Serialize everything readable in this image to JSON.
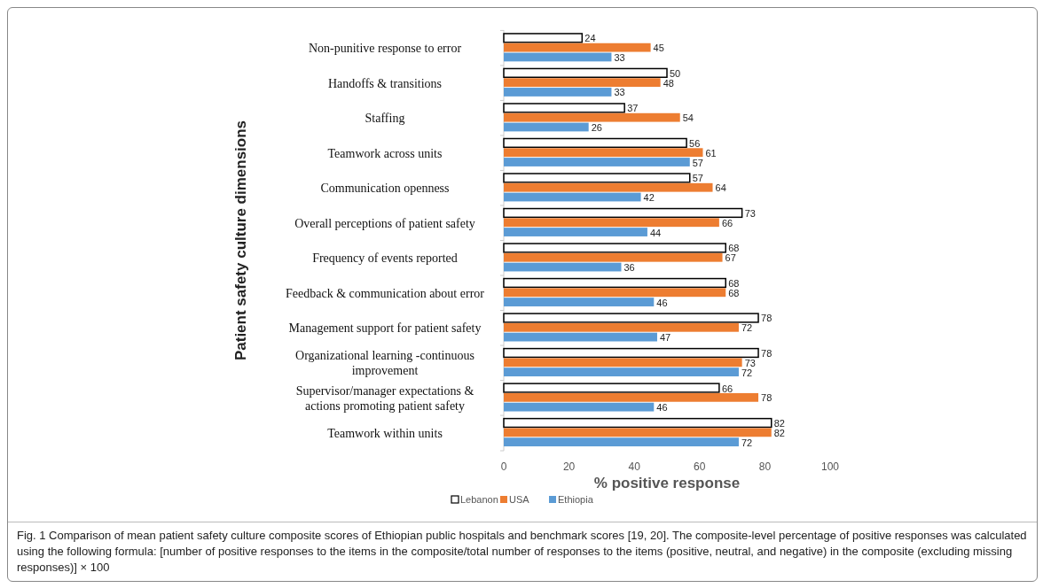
{
  "chart_data": {
    "type": "bar",
    "orientation": "horizontal",
    "ylabel": "Patient safety culture dimensions",
    "xlabel": "% positive response",
    "categories": [
      "Non-punitive response to error",
      "Handoffs & transitions",
      "Staffing",
      "Teamwork across units",
      "Communication openness",
      "Overall perceptions of patient safety",
      "Frequency of events reported",
      "Feedback & communication about error",
      "Management support for patient safety",
      "Organizational learning -continuous improvement",
      "Supervisor/manager expectations & actions promoting patient safety",
      "Teamwork within units"
    ],
    "series": [
      {
        "name": "Lebanon",
        "color": "#ffffff",
        "values": [
          24,
          50,
          37,
          56,
          57,
          73,
          68,
          68,
          78,
          78,
          66,
          82
        ]
      },
      {
        "name": "USA",
        "color": "#ed7d31",
        "values": [
          45,
          48,
          54,
          61,
          64,
          66,
          67,
          68,
          72,
          73,
          78,
          82
        ]
      },
      {
        "name": "Ethiopia",
        "color": "#5b9bd5",
        "values": [
          33,
          33,
          26,
          57,
          42,
          44,
          36,
          46,
          47,
          72,
          46,
          72
        ]
      }
    ],
    "xlim": [
      0,
      100
    ],
    "xticks": [
      0,
      20,
      40,
      60,
      80,
      100
    ],
    "data_labels": true,
    "legend": "bottom",
    "annotations": [
      "Fig. 1 Comparison of mean patient safety culture composite scores of Ethiopian public hospitals and benchmark scores [19, 20]. The composite-level percentage of positive responses was calculated using the following formula: [number of positive responses to the items in the composite/total number of responses to the items (positive, neutral, and negative) in the composite (excluding missing responses)] × 100"
    ]
  }
}
